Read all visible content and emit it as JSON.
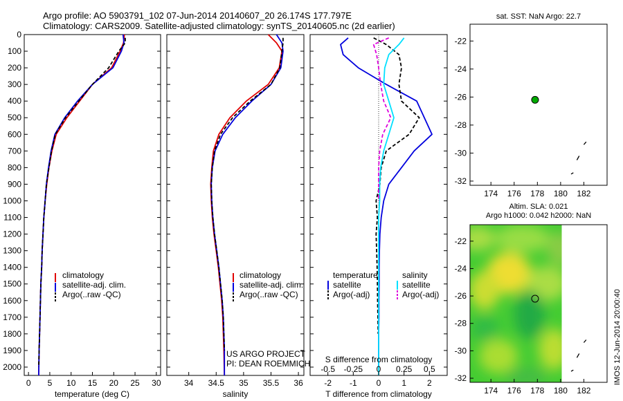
{
  "header": {
    "line1": "Argo profile: AO 5903791_102 07-Jun-2014 20140607_20 26.174S 177.797E",
    "line2": "Climatology: CARS2009. Satellite-adjusted climatology: synTS_20140605.nc (2d earlier)"
  },
  "colors": {
    "climatology": "#e00000",
    "satellite": "#0000dd",
    "argo": "#000000",
    "salinity_satellite": "#00e0ff",
    "salinity_argo": "#dd00dd",
    "map_marker": "#00aa00"
  },
  "depth_axis": {
    "ylim": [
      0,
      2050
    ],
    "ticks": [
      0,
      100,
      200,
      300,
      400,
      500,
      600,
      700,
      800,
      900,
      1000,
      1100,
      1200,
      1300,
      1400,
      1500,
      1600,
      1700,
      1800,
      1900,
      2000
    ],
    "tick_labels": [
      "0",
      "100",
      "200",
      "300",
      "400",
      "500",
      "600",
      "700",
      "800",
      "900",
      "1000",
      "1100",
      "1200",
      "1300",
      "1400",
      "1500",
      "1600",
      "1700",
      "1800",
      "1900",
      "2000"
    ]
  },
  "legend_profiles": [
    "climatology",
    "satellite-adj. clim.",
    "Argo(..raw -QC)"
  ],
  "legend_diff": {
    "temperature_title": "temperature",
    "salinity_title": "salinity",
    "satellite": "satellite",
    "argo": "Argo(-adj)"
  },
  "credits": {
    "line1": "US ARGO PROJECT",
    "line2": "PI: DEAN ROEMMICH"
  },
  "map_top": {
    "title": "sat. SST: NaN Argo: 22.7"
  },
  "map_bottom": {
    "title1": "Altim. SLA: 0.021",
    "title2": "Argo h1000: 0.042 h2000: NaN"
  },
  "side_label": "IMOS 12-Jun-2014 20:00:40",
  "chart_data": [
    {
      "type": "line",
      "name": "temperature-profile",
      "xlabel": "temperature (deg C)",
      "xlim": [
        -1,
        31
      ],
      "xticks": [
        0,
        5,
        10,
        15,
        20,
        25,
        30
      ],
      "xtick_labels": [
        "0",
        "5",
        "10",
        "15",
        "20",
        "25",
        "30"
      ],
      "ylim": [
        0,
        2050
      ],
      "series": [
        {
          "name": "climatology",
          "x": [
            22.5,
            22.3,
            21.5,
            19.5,
            15,
            12,
            9,
            6.5,
            5.5,
            4.8,
            4.3,
            3.9,
            3.6,
            3.4,
            3.2,
            3.1,
            2.9,
            2.8,
            2.7,
            2.6,
            2.5,
            2.4
          ],
          "depth": [
            0,
            50,
            100,
            200,
            300,
            400,
            500,
            600,
            700,
            800,
            900,
            1000,
            1100,
            1200,
            1300,
            1400,
            1500,
            1600,
            1700,
            1800,
            1900,
            2050
          ]
        },
        {
          "name": "satellite-adj. clim.",
          "x": [
            22.2,
            22.4,
            21.8,
            19.8,
            15,
            11.5,
            8.5,
            6.2,
            5.3,
            4.7,
            4.2,
            3.9,
            3.6,
            3.4,
            3.2,
            3.1,
            2.9,
            2.8,
            2.7,
            2.6,
            2.5,
            2.4
          ],
          "depth": [
            0,
            50,
            100,
            200,
            300,
            400,
            500,
            600,
            700,
            800,
            900,
            1000,
            1100,
            1200,
            1300,
            1400,
            1500,
            1600,
            1700,
            1800,
            1900,
            2050
          ]
        },
        {
          "name": "Argo(..raw -QC)",
          "x": [
            22.7,
            22.7,
            21.2,
            18.8,
            15,
            11.8,
            8.7,
            6.3,
            5.4,
            4.8,
            4.2,
            3.9,
            3.6,
            3.4,
            3.2,
            3.1,
            2.9,
            2.8,
            2.7,
            2.6,
            2.5,
            2.4
          ],
          "depth": [
            20,
            50,
            100,
            200,
            300,
            400,
            500,
            600,
            700,
            800,
            900,
            1000,
            1100,
            1200,
            1300,
            1400,
            1500,
            1600,
            1700,
            1800,
            1900,
            2000
          ]
        }
      ]
    },
    {
      "type": "line",
      "name": "salinity-profile",
      "xlabel": "salinity",
      "xlim": [
        33.6,
        36.1
      ],
      "xticks": [
        34,
        34.5,
        35,
        35.5,
        36
      ],
      "xtick_labels": [
        "34",
        "34.5",
        "35",
        "35.5",
        "36"
      ],
      "ylim": [
        0,
        2050
      ],
      "series": [
        {
          "name": "climatology",
          "x": [
            35.45,
            35.6,
            35.7,
            35.65,
            35.45,
            35.05,
            34.75,
            34.55,
            34.45,
            34.42,
            34.4,
            34.41,
            34.43,
            34.46,
            34.5,
            34.54,
            34.57,
            34.6,
            34.62,
            34.63,
            34.64,
            34.65
          ],
          "depth": [
            0,
            50,
            100,
            200,
            300,
            400,
            500,
            600,
            700,
            800,
            900,
            1000,
            1100,
            1200,
            1300,
            1400,
            1500,
            1600,
            1700,
            1800,
            1900,
            2050
          ]
        },
        {
          "name": "satellite-adj. clim.",
          "x": [
            35.6,
            35.7,
            35.72,
            35.68,
            35.5,
            35.15,
            34.85,
            34.62,
            34.48,
            34.43,
            34.41,
            34.42,
            34.44,
            34.47,
            34.51,
            34.55,
            34.58,
            34.61,
            34.63,
            34.64,
            34.65,
            34.65
          ],
          "depth": [
            0,
            50,
            100,
            200,
            300,
            400,
            500,
            600,
            700,
            800,
            900,
            1000,
            1100,
            1200,
            1300,
            1400,
            1500,
            1600,
            1700,
            1800,
            1900,
            2050
          ]
        },
        {
          "name": "Argo(..raw -QC)",
          "x": [
            35.72,
            35.72,
            35.7,
            35.66,
            35.5,
            35.12,
            34.8,
            34.58,
            34.47,
            34.43,
            34.41,
            34.42,
            34.44,
            34.47,
            34.51,
            34.55,
            34.58,
            34.61,
            34.63,
            34.64,
            34.65
          ],
          "depth": [
            20,
            50,
            100,
            200,
            300,
            400,
            500,
            600,
            700,
            800,
            900,
            1000,
            1100,
            1200,
            1300,
            1400,
            1500,
            1600,
            1700,
            1800,
            1900
          ]
        }
      ]
    },
    {
      "type": "line",
      "name": "difference-profile",
      "xlabel": "T difference from climatology",
      "xlim": [
        -2.7,
        2.7
      ],
      "xticks": [
        -2,
        -1,
        0,
        1,
        2
      ],
      "xtick_labels": [
        "-2",
        "-1",
        "0",
        "1",
        "2"
      ],
      "top_xlabel": "S difference from climatology",
      "top_xticks": [
        -0.5,
        -0.25,
        0,
        0.25,
        0.5
      ],
      "top_xtick_labels": [
        "-0.5",
        "-0.25",
        "0",
        "0.25",
        "0.5"
      ],
      "ylim": [
        0,
        2050
      ],
      "series": [
        {
          "name": "temperature satellite",
          "x": [
            -1.2,
            -1.5,
            -1.4,
            -0.8,
            0.3,
            1.5,
            1.8,
            2.1,
            1.4,
            0.9,
            0.4,
            0.2,
            0.1,
            0.05,
            0.03,
            0.02,
            0.02,
            0.01,
            0.01,
            0.0,
            0.0
          ],
          "depth": [
            20,
            60,
            120,
            200,
            300,
            400,
            500,
            600,
            700,
            800,
            900,
            1000,
            1100,
            1200,
            1300,
            1400,
            1500,
            1600,
            1700,
            1800,
            2000
          ]
        },
        {
          "name": "temperature Argo(-adj)",
          "x": [
            -0.2,
            0.3,
            0.8,
            0.9,
            0.8,
            0.9,
            1.6,
            1.2,
            0.3,
            0.1,
            0.05,
            -0.1,
            -0.05,
            -0.1,
            -0.08,
            -0.06,
            -0.05,
            -0.04,
            -0.03,
            -0.02
          ],
          "depth": [
            20,
            60,
            120,
            200,
            300,
            400,
            500,
            600,
            700,
            800,
            900,
            1000,
            1100,
            1200,
            1300,
            1400,
            1500,
            1600,
            1700,
            1800
          ]
        },
        {
          "name": "salinity satellite",
          "x": [
            0.25,
            0.2,
            0.1,
            0.06,
            0.05,
            0.1,
            0.15,
            0.1,
            0.05,
            0.02,
            0.01,
            0.01,
            0.0,
            0.0,
            0.0,
            0.0,
            0.0,
            0.0,
            0.0,
            0.0,
            0.0
          ],
          "depth": [
            20,
            60,
            120,
            200,
            300,
            400,
            500,
            600,
            700,
            800,
            900,
            1000,
            1100,
            1200,
            1300,
            1400,
            1500,
            1600,
            1700,
            1800,
            2050
          ]
        },
        {
          "name": "salinity Argo(-adj)",
          "x": [
            0.1,
            -0.05,
            -0.02,
            0.0,
            0.02,
            0.05,
            0.12,
            0.04,
            0.01,
            0.0,
            0.0,
            0.0
          ],
          "depth": [
            20,
            60,
            120,
            200,
            300,
            400,
            500,
            600,
            700,
            800,
            900,
            1000
          ]
        }
      ]
    },
    {
      "type": "scatter",
      "name": "map-top",
      "xlim": [
        172.2,
        184
      ],
      "ylim": [
        -32.3,
        -20.8
      ],
      "xticks": [
        174,
        176,
        178,
        180,
        182
      ],
      "xtick_labels": [
        "174",
        "176",
        "178",
        "180",
        "182"
      ],
      "yticks": [
        -22,
        -24,
        -26,
        -28,
        -30,
        -32
      ],
      "ytick_labels": [
        "-22",
        "-24",
        "-26",
        "-28",
        "-30",
        "-32"
      ],
      "profile": {
        "lon": 177.8,
        "lat": -26.2
      },
      "coast": [
        [
          182.2,
          -29.2
        ],
        [
          182.0,
          -29.4
        ]
      ],
      "coast2": [
        [
          181.6,
          -30.2
        ],
        [
          181.4,
          -30.5
        ]
      ],
      "coast3": [
        [
          181.1,
          -31.4
        ],
        [
          180.9,
          -31.5
        ]
      ]
    },
    {
      "type": "heatmap",
      "name": "map-bottom",
      "xlim": [
        172.2,
        184
      ],
      "ylim": [
        -32.3,
        -20.8
      ],
      "xticks": [
        174,
        176,
        178,
        180,
        182
      ],
      "xtick_labels": [
        "174",
        "176",
        "178",
        "180",
        "182"
      ],
      "yticks": [
        -22,
        -24,
        -26,
        -28,
        -30,
        -32
      ],
      "ytick_labels": [
        "-22",
        "-24",
        "-26",
        "-28",
        "-30",
        "-32"
      ],
      "profile": {
        "lon": 177.8,
        "lat": -26.2
      },
      "data_extent_lon": [
        172.2,
        180.1
      ]
    }
  ]
}
